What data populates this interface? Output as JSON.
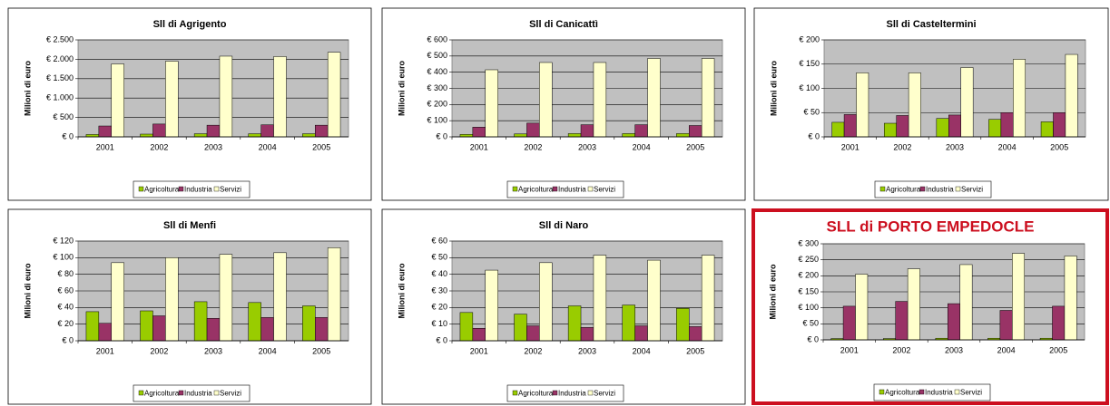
{
  "chart_data": [
    {
      "type": "bar",
      "title": "Sll di Agrigento",
      "y_label": "Milioni di euro",
      "categories": [
        "2001",
        "2002",
        "2003",
        "2004",
        "2005"
      ],
      "series": [
        {
          "name": "Agricoltura",
          "color": "#99cc00",
          "values": [
            60,
            70,
            80,
            80,
            80
          ]
        },
        {
          "name": "Industria",
          "color": "#993366",
          "values": [
            280,
            330,
            300,
            310,
            300
          ]
        },
        {
          "name": "Servizi",
          "color": "#ffffcc",
          "values": [
            1880,
            1950,
            2080,
            2070,
            2180
          ]
        }
      ],
      "ylim": [
        0,
        2500
      ],
      "yticks": [
        {
          "value": 0,
          "label": "€ 0"
        },
        {
          "value": 500,
          "label": "€ 500"
        },
        {
          "value": 1000,
          "label": "€ 1.000"
        },
        {
          "value": 1500,
          "label": "€ 1.500"
        },
        {
          "value": 2000,
          "label": "€ 2.000"
        },
        {
          "value": 2500,
          "label": "€ 2.500"
        }
      ],
      "grid": true
    },
    {
      "type": "bar",
      "title": "Sll di Canicattì",
      "y_label": "Milioni di euro",
      "categories": [
        "2001",
        "2002",
        "2003",
        "2004",
        "2005"
      ],
      "series": [
        {
          "name": "Agricoltura",
          "color": "#99cc00",
          "values": [
            15,
            18,
            20,
            20,
            20
          ]
        },
        {
          "name": "Industria",
          "color": "#993366",
          "values": [
            60,
            85,
            75,
            75,
            70
          ]
        },
        {
          "name": "Servizi",
          "color": "#ffffcc",
          "values": [
            415,
            460,
            460,
            485,
            485
          ]
        }
      ],
      "ylim": [
        0,
        600
      ],
      "yticks": [
        {
          "value": 0,
          "label": "€ 0"
        },
        {
          "value": 100,
          "label": "€ 100"
        },
        {
          "value": 200,
          "label": "€ 200"
        },
        {
          "value": 300,
          "label": "€ 300"
        },
        {
          "value": 400,
          "label": "€ 400"
        },
        {
          "value": 500,
          "label": "€ 500"
        },
        {
          "value": 600,
          "label": "€ 600"
        }
      ],
      "grid": true
    },
    {
      "type": "bar",
      "title": "Sll di Casteltermini",
      "y_label": "Milioni di euro",
      "categories": [
        "2001",
        "2002",
        "2003",
        "2004",
        "2005"
      ],
      "series": [
        {
          "name": "Agricoltura",
          "color": "#99cc00",
          "values": [
            30,
            28,
            38,
            36,
            31
          ]
        },
        {
          "name": "Industria",
          "color": "#993366",
          "values": [
            46,
            44,
            45,
            50,
            50
          ]
        },
        {
          "name": "Servizi",
          "color": "#ffffcc",
          "values": [
            132,
            132,
            143,
            160,
            170
          ]
        }
      ],
      "ylim": [
        0,
        200
      ],
      "yticks": [
        {
          "value": 0,
          "label": "€ 0"
        },
        {
          "value": 50,
          "label": "€ 50"
        },
        {
          "value": 100,
          "label": "€ 100"
        },
        {
          "value": 150,
          "label": "€ 150"
        },
        {
          "value": 200,
          "label": "€ 200"
        }
      ],
      "grid": true
    },
    {
      "type": "bar",
      "title": "Sll di Menfi",
      "y_label": "Milioni di euro",
      "categories": [
        "2001",
        "2002",
        "2003",
        "2004",
        "2005"
      ],
      "series": [
        {
          "name": "Agricoltura",
          "color": "#99cc00",
          "values": [
            35,
            36,
            47,
            46,
            42
          ]
        },
        {
          "name": "Industria",
          "color": "#993366",
          "values": [
            21,
            30,
            27,
            28,
            28
          ]
        },
        {
          "name": "Servizi",
          "color": "#ffffcc",
          "values": [
            94,
            100,
            104,
            106,
            112
          ]
        }
      ],
      "ylim": [
        0,
        120
      ],
      "yticks": [
        {
          "value": 0,
          "label": "€ 0"
        },
        {
          "value": 20,
          "label": "€ 20"
        },
        {
          "value": 40,
          "label": "€ 40"
        },
        {
          "value": 60,
          "label": "€ 60"
        },
        {
          "value": 80,
          "label": "€ 80"
        },
        {
          "value": 100,
          "label": "€ 100"
        },
        {
          "value": 120,
          "label": "€ 120"
        }
      ],
      "grid": true
    },
    {
      "type": "bar",
      "title": "Sll di Naro",
      "y_label": "Milioni di euro",
      "categories": [
        "2001",
        "2002",
        "2003",
        "2004",
        "2005"
      ],
      "series": [
        {
          "name": "Agricoltura",
          "color": "#99cc00",
          "values": [
            17,
            16,
            21,
            21.5,
            19.5
          ]
        },
        {
          "name": "Industria",
          "color": "#993366",
          "values": [
            7.5,
            9,
            8,
            9,
            8.5
          ]
        },
        {
          "name": "Servizi",
          "color": "#ffffcc",
          "values": [
            42.5,
            47,
            51.5,
            48.5,
            51.5
          ]
        }
      ],
      "ylim": [
        0,
        60
      ],
      "yticks": [
        {
          "value": 0,
          "label": "€ 0"
        },
        {
          "value": 10,
          "label": "€ 10"
        },
        {
          "value": 20,
          "label": "€ 20"
        },
        {
          "value": 30,
          "label": "€ 30"
        },
        {
          "value": 40,
          "label": "€ 40"
        },
        {
          "value": 50,
          "label": "€ 50"
        },
        {
          "value": 60,
          "label": "€ 60"
        }
      ],
      "grid": true
    },
    {
      "type": "bar",
      "title": "SLL di PORTO EMPEDOCLE",
      "y_label": "Milioni di euro",
      "categories": [
        "2001",
        "2002",
        "2003",
        "2004",
        "2005"
      ],
      "series": [
        {
          "name": "Agricoltura",
          "color": "#99cc00",
          "values": [
            4,
            4,
            5,
            5,
            5
          ]
        },
        {
          "name": "Industria",
          "color": "#993366",
          "values": [
            105,
            120,
            113,
            92,
            105
          ]
        },
        {
          "name": "Servizi",
          "color": "#ffffcc",
          "values": [
            205,
            222,
            235,
            270,
            262
          ]
        }
      ],
      "ylim": [
        0,
        300
      ],
      "yticks": [
        {
          "value": 0,
          "label": "€ 0"
        },
        {
          "value": 50,
          "label": "€ 50"
        },
        {
          "value": 100,
          "label": "€ 100"
        },
        {
          "value": 150,
          "label": "€ 150"
        },
        {
          "value": 200,
          "label": "€ 200"
        },
        {
          "value": 250,
          "label": "€ 250"
        },
        {
          "value": 300,
          "label": "€ 300"
        }
      ],
      "grid": true
    }
  ]
}
